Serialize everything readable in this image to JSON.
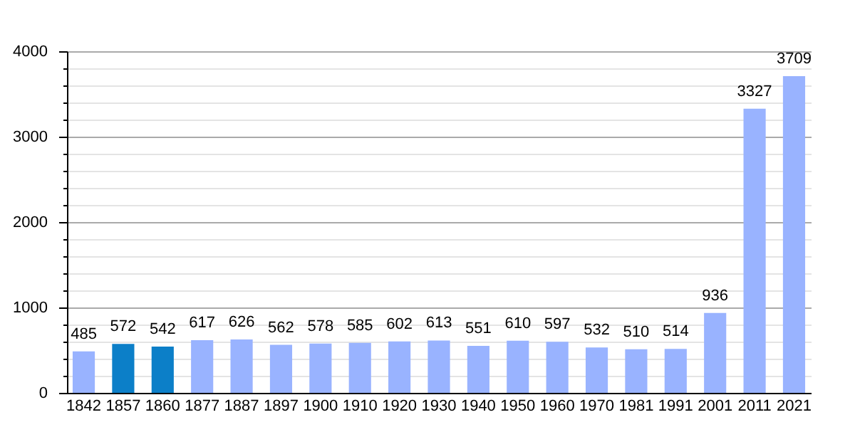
{
  "chart_data": {
    "type": "bar",
    "categories": [
      "1842",
      "1857",
      "1860",
      "1877",
      "1887",
      "1897",
      "1900",
      "1910",
      "1920",
      "1930",
      "1940",
      "1950",
      "1960",
      "1970",
      "1981",
      "1991",
      "2001",
      "2011",
      "2021"
    ],
    "values": [
      485,
      572,
      542,
      617,
      626,
      562,
      578,
      585,
      602,
      613,
      551,
      610,
      597,
      532,
      510,
      514,
      936,
      3327,
      3709
    ],
    "colors": [
      "#99b3ff",
      "#0c7fc8",
      "#0c7fc8",
      "#99b3ff",
      "#99b3ff",
      "#99b3ff",
      "#99b3ff",
      "#99b3ff",
      "#99b3ff",
      "#99b3ff",
      "#99b3ff",
      "#99b3ff",
      "#99b3ff",
      "#99b3ff",
      "#99b3ff",
      "#99b3ff",
      "#99b3ff",
      "#99b3ff",
      "#99b3ff"
    ],
    "ylim": [
      0,
      4000
    ],
    "yticks": [
      0,
      {
        "value": 200,
        "label": null
      },
      {
        "value": 400,
        "label": null
      },
      {
        "value": 600,
        "label": null
      },
      {
        "value": 800,
        "label": null
      },
      1000,
      {
        "value": 1200,
        "label": null
      },
      {
        "value": 1400,
        "label": null
      },
      {
        "value": 1600,
        "label": null
      },
      {
        "value": 1800,
        "label": null
      },
      2000,
      {
        "value": 2200,
        "label": null
      },
      {
        "value": 2400,
        "label": null
      },
      {
        "value": 2600,
        "label": null
      },
      {
        "value": 2800,
        "label": null
      },
      3000,
      {
        "value": 3200,
        "label": null
      },
      {
        "value": 3400,
        "label": null
      },
      {
        "value": 3600,
        "label": null
      },
      {
        "value": 3800,
        "label": null
      },
      4000
    ],
    "grid": true,
    "data_labels": true
  }
}
